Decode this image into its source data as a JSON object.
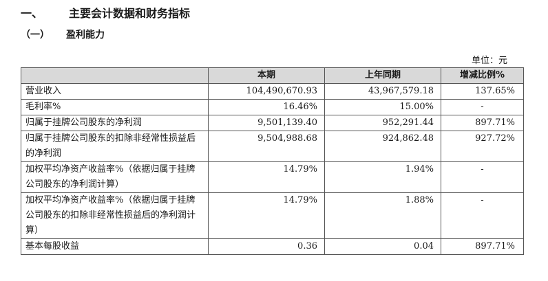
{
  "heading": {
    "number": "一、",
    "title": "主要会计数据和财务指标"
  },
  "subheading": {
    "number": "（一）",
    "title": "盈利能力"
  },
  "unit_label": "单位：元",
  "table": {
    "headers": [
      "",
      "本期",
      "上年同期",
      "增减比例%"
    ],
    "rows": [
      {
        "label": "营业收入",
        "current": "104,490,670.93",
        "prior": "43,967,579.18",
        "change": "137.65%"
      },
      {
        "label": "毛利率%",
        "current": "16.46%",
        "prior": "15.00%",
        "change": "-"
      },
      {
        "label": "归属于挂牌公司股东的净利润",
        "current": "9,501,139.40",
        "prior": "952,291.44",
        "change": "897.71%"
      },
      {
        "label": "归属于挂牌公司股东的扣除非经常性损益后的净利润",
        "current": "9,504,988.68",
        "prior": "924,862.48",
        "change": "927.72%"
      },
      {
        "label": "加权平均净资产收益率%（依据归属于挂牌公司股东的净利润计算）",
        "current": "14.79%",
        "prior": "1.94%",
        "change": "-"
      },
      {
        "label": "加权平均净资产收益率%（依据归属于挂牌公司股东的扣除非经常性损益后的净利润计算）",
        "current": "14.79%",
        "prior": "1.88%",
        "change": "-"
      },
      {
        "label": "基本每股收益",
        "current": "0.36",
        "prior": "0.04",
        "change": "897.71%"
      }
    ]
  }
}
